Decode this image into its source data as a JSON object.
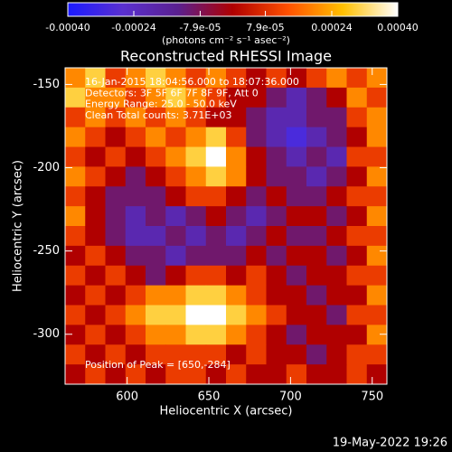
{
  "chart_data": {
    "type": "heatmap",
    "title": "Reconstructed RHESSI Image",
    "x_label": "Heliocentric X (arcsec)",
    "y_label": "Heliocentric Y (arcsec)",
    "colorbar_label": "(photons cm⁻² s⁻¹ asec⁻²)",
    "annotations": [
      "16-Jan-2015 18:04:56.000 to 18:07:36.000",
      "Detectors: 3F 5F 6F 7F 8F 9F, Att 0",
      "Energy Range: 25.0 - 50.0 keV",
      "Clean    Total counts: 3.71E+03"
    ],
    "peak_annotation": "Position of Peak = [650,-284]",
    "footer": "19-May-2022 19:26",
    "xlim": [
      562,
      759
    ],
    "ylim": [
      -330,
      -140
    ],
    "xticks": [
      600,
      650,
      700,
      750
    ],
    "yticks": [
      -150,
      -200,
      -250,
      -300
    ],
    "clim": [
      -0.0004,
      0.0004
    ],
    "cticks": [
      {
        "value": -0.0004,
        "label": "-0.00040"
      },
      {
        "value": -0.00024,
        "label": "-0.00024"
      },
      {
        "value": -7.9e-05,
        "label": "-7.9e-05"
      },
      {
        "value": 7.9e-05,
        "label": "7.9e-05"
      },
      {
        "value": 0.00024,
        "label": "0.00024"
      },
      {
        "value": 0.0004,
        "label": "0.00040"
      }
    ],
    "colormap": [
      "#1a1aff",
      "#5a30d0",
      "#5a2090",
      "#b00000",
      "#ff5000",
      "#ffc000",
      "#ffffff"
    ],
    "z": [
      [
        0.0002,
        0.0003,
        0.0001,
        0.0002,
        0.0003,
        0.0002,
        0.0001,
        0.0002,
        0.0001,
        0,
        0.0001,
        0,
        0.0001,
        0.0002,
        0.0001,
        0.0002
      ],
      [
        0.0003,
        0.0002,
        0.0002,
        0.0001,
        0.0002,
        0.0003,
        0.0002,
        0.0001,
        0,
        0,
        -0.0001,
        -0.0002,
        -0.0001,
        0,
        0.0002,
        0.0001
      ],
      [
        0.0001,
        0.0002,
        0.0001,
        0.0002,
        0.0001,
        0.0002,
        0.0001,
        0,
        0,
        -0.0001,
        -0.0002,
        -0.0002,
        -0.0001,
        -0.0001,
        0.0001,
        0.0002
      ],
      [
        0.0002,
        0.0001,
        0,
        0.0001,
        0.0002,
        0.0001,
        0.0002,
        0.0003,
        0.0001,
        -0.0001,
        -0.0002,
        -0.0003,
        -0.0002,
        -0.0001,
        0,
        0.0002
      ],
      [
        0.0001,
        0,
        0.0001,
        0,
        0.0001,
        0.0002,
        0.0003,
        0.0004,
        0.0002,
        0,
        -0.0001,
        -0.0002,
        -0.0001,
        -0.0002,
        0.0001,
        0.0001
      ],
      [
        0.0002,
        0.0001,
        0,
        -0.0001,
        0,
        0.0001,
        0.0002,
        0.0003,
        0.0002,
        0,
        -0.0001,
        -0.0001,
        -0.0002,
        -0.0001,
        0,
        0.0002
      ],
      [
        0.0001,
        0,
        -0.0001,
        -0.0001,
        -0.0001,
        0,
        0.0001,
        0.0001,
        0,
        -0.0001,
        0,
        -0.0001,
        -0.0001,
        0,
        0.0001,
        0.0001
      ],
      [
        0.0002,
        0,
        -0.0001,
        -0.0002,
        -0.0001,
        -0.0002,
        -0.0001,
        0,
        -0.0001,
        -0.0002,
        -0.0001,
        0,
        0,
        -0.0001,
        0,
        0.0002
      ],
      [
        0.0001,
        0,
        -0.0001,
        -0.0002,
        -0.0002,
        -0.0001,
        -0.0002,
        -0.0001,
        -0.0002,
        -0.0001,
        0,
        -0.0001,
        -0.0001,
        0,
        0.0001,
        0.0001
      ],
      [
        0,
        0.0001,
        0,
        -0.0001,
        -0.0001,
        -0.0002,
        -0.0001,
        -0.0001,
        -0.0001,
        0,
        -0.0001,
        0,
        0,
        -0.0001,
        0,
        0.0002
      ],
      [
        0.0001,
        0,
        0.0001,
        0,
        -0.0001,
        0,
        0.0001,
        0.0001,
        0,
        0.0001,
        0,
        -0.0001,
        0,
        0,
        0.0001,
        0.0001
      ],
      [
        0,
        0.0001,
        0,
        0.0001,
        0.0002,
        0.0002,
        0.0003,
        0.0003,
        0.0002,
        0.0001,
        0,
        0,
        -0.0001,
        0,
        0,
        0.0002
      ],
      [
        0.0001,
        0,
        0.0001,
        0.0002,
        0.0003,
        0.0003,
        0.0004,
        0.0004,
        0.0003,
        0.0002,
        0.0001,
        0,
        0,
        -0.0001,
        0.0001,
        0.0001
      ],
      [
        0,
        0.0001,
        0,
        0.0001,
        0.0002,
        0.0002,
        0.0003,
        0.0003,
        0.0002,
        0.0001,
        0,
        -0.0001,
        0,
        0,
        0,
        0.0002
      ],
      [
        0.0001,
        0,
        0.0001,
        0,
        0.0001,
        0.0001,
        0.0001,
        0.0001,
        0,
        0.0001,
        0,
        0,
        -0.0001,
        0,
        0.0001,
        0.0001
      ],
      [
        0,
        0.0001,
        0,
        0.0001,
        0,
        0.0001,
        0.0001,
        0,
        0.0001,
        0,
        0,
        0.0001,
        0,
        0,
        0.0001,
        0
      ]
    ]
  }
}
